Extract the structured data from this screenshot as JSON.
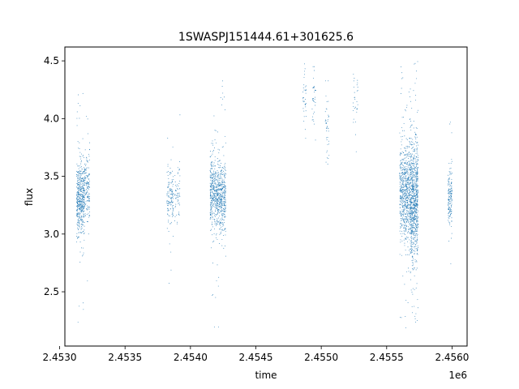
{
  "chart_data": {
    "type": "scatter",
    "title": "1SWASPJ151444.61+301625.6",
    "xlabel": "time",
    "ylabel": "flux",
    "x_offset_label": "1e6",
    "xlim": [
      2453040,
      2456115
    ],
    "ylim": [
      2.03,
      4.62
    ],
    "grid": false,
    "legend": "none",
    "marker_color": "#1f77b4",
    "x_ticks": [
      2453000,
      2453500,
      2454000,
      2454500,
      2455000,
      2455500,
      2456000
    ],
    "x_tick_labels": [
      "2.4530",
      "2.4535",
      "2.4540",
      "2.4545",
      "2.4550",
      "2.4555",
      "2.4560"
    ],
    "y_ticks": [
      2.5,
      3.0,
      3.5,
      4.0,
      4.5
    ],
    "y_tick_labels": [
      "2.5",
      "3.0",
      "3.5",
      "4.0",
      "4.5"
    ],
    "observing_seasons": [
      {
        "x_start": 2453130,
        "x_end": 2453190,
        "y_center": 3.3,
        "y_spread": 0.16,
        "y_min": 2.16,
        "y_max": 4.27,
        "n_points": 520
      },
      {
        "x_start": 2453190,
        "x_end": 2453230,
        "y_center": 3.4,
        "y_spread": 0.14,
        "y_min": 2.45,
        "y_max": 4.2,
        "n_points": 160
      },
      {
        "x_start": 2453820,
        "x_end": 2453870,
        "y_center": 3.32,
        "y_spread": 0.12,
        "y_min": 2.55,
        "y_max": 3.95,
        "n_points": 140
      },
      {
        "x_start": 2453880,
        "x_end": 2453920,
        "y_center": 3.35,
        "y_spread": 0.13,
        "y_min": 2.8,
        "y_max": 4.05,
        "n_points": 60
      },
      {
        "x_start": 2454150,
        "x_end": 2454220,
        "y_center": 3.35,
        "y_spread": 0.16,
        "y_min": 2.19,
        "y_max": 4.07,
        "n_points": 460
      },
      {
        "x_start": 2454220,
        "x_end": 2454270,
        "y_center": 3.3,
        "y_spread": 0.15,
        "y_min": 2.7,
        "y_max": 4.33,
        "n_points": 340
      },
      {
        "x_start": 2454860,
        "x_end": 2454885,
        "y_center": 4.22,
        "y_spread": 0.12,
        "y_min": 3.75,
        "y_max": 4.52,
        "n_points": 35
      },
      {
        "x_start": 2454930,
        "x_end": 2454960,
        "y_center": 4.2,
        "y_spread": 0.12,
        "y_min": 3.8,
        "y_max": 4.45,
        "n_points": 35
      },
      {
        "x_start": 2455030,
        "x_end": 2455060,
        "y_center": 3.95,
        "y_spread": 0.15,
        "y_min": 3.27,
        "y_max": 4.42,
        "n_points": 40
      },
      {
        "x_start": 2455240,
        "x_end": 2455280,
        "y_center": 4.15,
        "y_spread": 0.12,
        "y_min": 3.7,
        "y_max": 4.48,
        "n_points": 30
      },
      {
        "x_start": 2455600,
        "x_end": 2455680,
        "y_center": 3.35,
        "y_spread": 0.2,
        "y_min": 2.16,
        "y_max": 4.5,
        "n_points": 700
      },
      {
        "x_start": 2455680,
        "x_end": 2455740,
        "y_center": 3.3,
        "y_spread": 0.25,
        "y_min": 2.2,
        "y_max": 4.5,
        "n_points": 900
      },
      {
        "x_start": 2455970,
        "x_end": 2456000,
        "y_center": 3.3,
        "y_spread": 0.12,
        "y_min": 2.22,
        "y_max": 4.31,
        "n_points": 170
      }
    ]
  }
}
